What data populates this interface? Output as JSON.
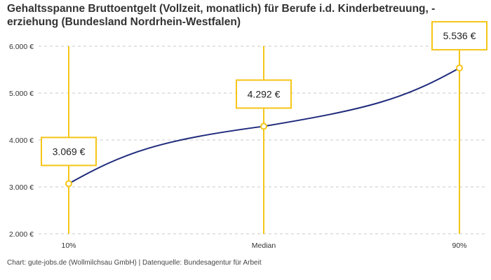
{
  "title_lines": [
    "Gehaltsspanne Bruttoentgelt (Vollzeit, monatlich) für Berufe i.d. Kinderbetreuung, -",
    "erziehung (Bundesland Nordrhein-Westfalen)"
  ],
  "source": "Chart: gute-jobs.de (Wollmilchsau GmbH) | Datenquelle: Bundesagentur für Arbeit",
  "colors": {
    "line": "#1f2a7c",
    "accent": "#f5c518",
    "grid": "#c8c8c8"
  },
  "chart_data": {
    "type": "line",
    "categories": [
      "10%",
      "Median",
      "90%"
    ],
    "values": [
      3069,
      4292,
      5536
    ],
    "data_labels": [
      "3.069 €",
      "4.292 €",
      "5.536 €"
    ],
    "y_ticks": [
      {
        "value": 2000,
        "label": "2.000 €"
      },
      {
        "value": 3000,
        "label": "3.000 €"
      },
      {
        "value": 4000,
        "label": "4.000 €"
      },
      {
        "value": 5000,
        "label": "5.000 €"
      },
      {
        "value": 6000,
        "label": "6.000 €"
      }
    ],
    "ylim": [
      2000,
      6000
    ],
    "grid": true
  }
}
